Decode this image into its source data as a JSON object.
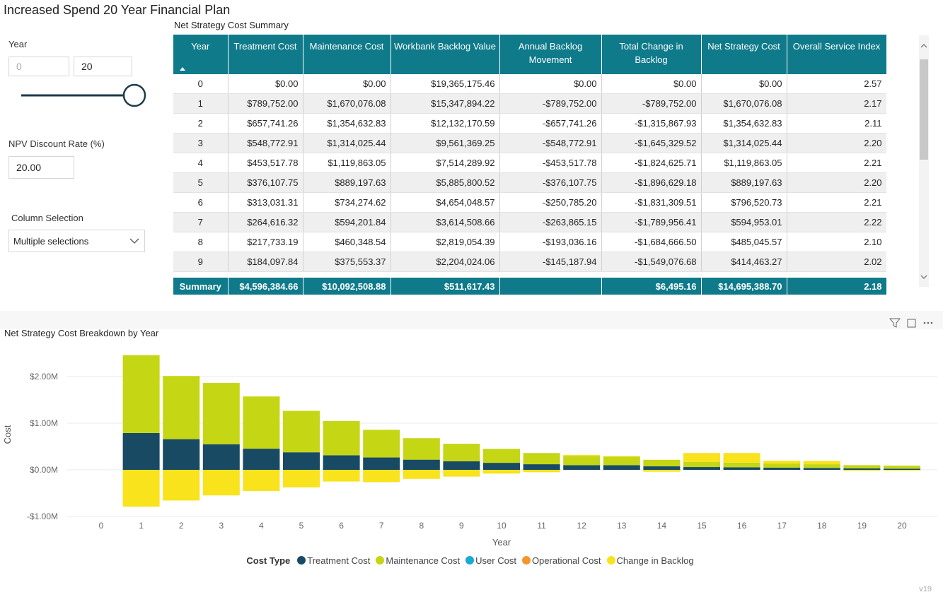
{
  "header": {
    "title": "Increased Spend 20 Year Financial Plan"
  },
  "controls": {
    "year_label": "Year",
    "year_min": "0",
    "year_max": "20",
    "npv_label": "NPV Discount Rate (%)",
    "npv_value": "20.00",
    "column_label": "Column Selection",
    "column_value": "Multiple selections"
  },
  "table": {
    "title": "Net Strategy Cost Summary",
    "columns": [
      "Year",
      "Treatment Cost",
      "Maintenance Cost",
      "Workbank Backlog Value",
      "Annual Backlog Movement",
      "Total Change in Backlog",
      "Net Strategy Cost",
      "Overall Service Index"
    ],
    "rows": [
      [
        "0",
        "$0.00",
        "$0.00",
        "$19,365,175.46",
        "$0.00",
        "$0.00",
        "$0.00",
        "2.57"
      ],
      [
        "1",
        "$789,752.00",
        "$1,670,076.08",
        "$15,347,894.22",
        "-$789,752.00",
        "-$789,752.00",
        "$1,670,076.08",
        "2.17"
      ],
      [
        "2",
        "$657,741.26",
        "$1,354,632.83",
        "$12,132,170.59",
        "-$657,741.26",
        "-$1,315,867.93",
        "$1,354,632.83",
        "2.11"
      ],
      [
        "3",
        "$548,772.91",
        "$1,314,025.44",
        "$9,561,369.25",
        "-$548,772.91",
        "-$1,645,329.52",
        "$1,314,025.44",
        "2.20"
      ],
      [
        "4",
        "$453,517.78",
        "$1,119,863.05",
        "$7,514,289.92",
        "-$453,517.78",
        "-$1,824,625.71",
        "$1,119,863.05",
        "2.21"
      ],
      [
        "5",
        "$376,107.75",
        "$889,197.63",
        "$5,885,800.52",
        "-$376,107.75",
        "-$1,896,629.18",
        "$889,197.63",
        "2.20"
      ],
      [
        "6",
        "$313,031.31",
        "$734,274.62",
        "$4,654,048.57",
        "-$250,785.20",
        "-$1,831,309.51",
        "$796,520.73",
        "2.21"
      ],
      [
        "7",
        "$264,616.32",
        "$594,201.84",
        "$3,614,508.66",
        "-$263,865.15",
        "-$1,789,956.41",
        "$594,953.01",
        "2.22"
      ],
      [
        "8",
        "$217,733.19",
        "$460,348.54",
        "$2,819,054.39",
        "-$193,036.16",
        "-$1,684,666.50",
        "$485,045.57",
        "2.10"
      ],
      [
        "9",
        "$184,097.84",
        "$375,553.37",
        "$2,204,024.06",
        "-$145,187.94",
        "-$1,549,076.68",
        "$414,463.27",
        "2.02"
      ]
    ],
    "summary": [
      "Summary",
      "$4,596,384.66",
      "$10,092,508.88",
      "$511,617.43",
      null,
      "$6,495.16",
      "$14,695,388.70",
      "2.18"
    ]
  },
  "chart_data": {
    "type": "stacked_bar",
    "title": "Net Strategy Cost Breakdown by Year",
    "x_label": "Year",
    "y_label": "Cost",
    "legend_title": "Cost Type",
    "categories": [
      "0",
      "1",
      "2",
      "3",
      "4",
      "5",
      "6",
      "7",
      "8",
      "9",
      "10",
      "11",
      "12",
      "13",
      "14",
      "15",
      "16",
      "17",
      "18",
      "19",
      "20"
    ],
    "series": [
      {
        "name": "Treatment Cost",
        "color": "#184a63",
        "values": [
          0,
          789752,
          657741.26,
          548772.91,
          453517.78,
          376107.75,
          313031.31,
          264616.32,
          217733.19,
          184097.84,
          150000,
          120000,
          100000,
          100000,
          75000,
          60000,
          55000,
          45000,
          40000,
          30000,
          25000
        ]
      },
      {
        "name": "Maintenance Cost",
        "color": "#c5d615",
        "values": [
          0,
          1670076.08,
          1354632.83,
          1314025.44,
          1119863.05,
          889197.63,
          734274.62,
          594201.84,
          460348.54,
          375553.37,
          300000,
          240000,
          200000,
          180000,
          140000,
          110000,
          100000,
          90000,
          80000,
          70000,
          65000
        ]
      },
      {
        "name": "User Cost",
        "color": "#1aa9d3",
        "values": [
          0,
          0,
          0,
          0,
          0,
          0,
          0,
          0,
          0,
          0,
          0,
          0,
          0,
          0,
          0,
          0,
          0,
          0,
          0,
          0,
          0
        ]
      },
      {
        "name": "Operational Cost",
        "color": "#f5962a",
        "values": [
          0,
          0,
          0,
          0,
          0,
          0,
          0,
          0,
          0,
          0,
          0,
          0,
          0,
          0,
          0,
          0,
          0,
          0,
          0,
          0,
          0
        ]
      },
      {
        "name": "Change in Backlog",
        "color": "#f8e31c",
        "values": [
          0,
          -789752,
          -657741.26,
          -548772.91,
          -453517.78,
          -376107.75,
          -250785.2,
          -263865.15,
          -193036.16,
          -145187.94,
          -80000,
          -50000,
          20000,
          15000,
          -40000,
          190000,
          205000,
          60000,
          70000,
          -20000,
          -15000
        ]
      }
    ],
    "ylim": [
      -1100000,
      2600000
    ],
    "yticks": [
      {
        "value": -1000000,
        "label": "-$1.00M"
      },
      {
        "value": 0,
        "label": "$0.00M"
      },
      {
        "value": 1000000,
        "label": "$1.00M"
      },
      {
        "value": 2000000,
        "label": "$2.00M"
      }
    ],
    "grid": true
  },
  "footer": {
    "version": "v19"
  }
}
